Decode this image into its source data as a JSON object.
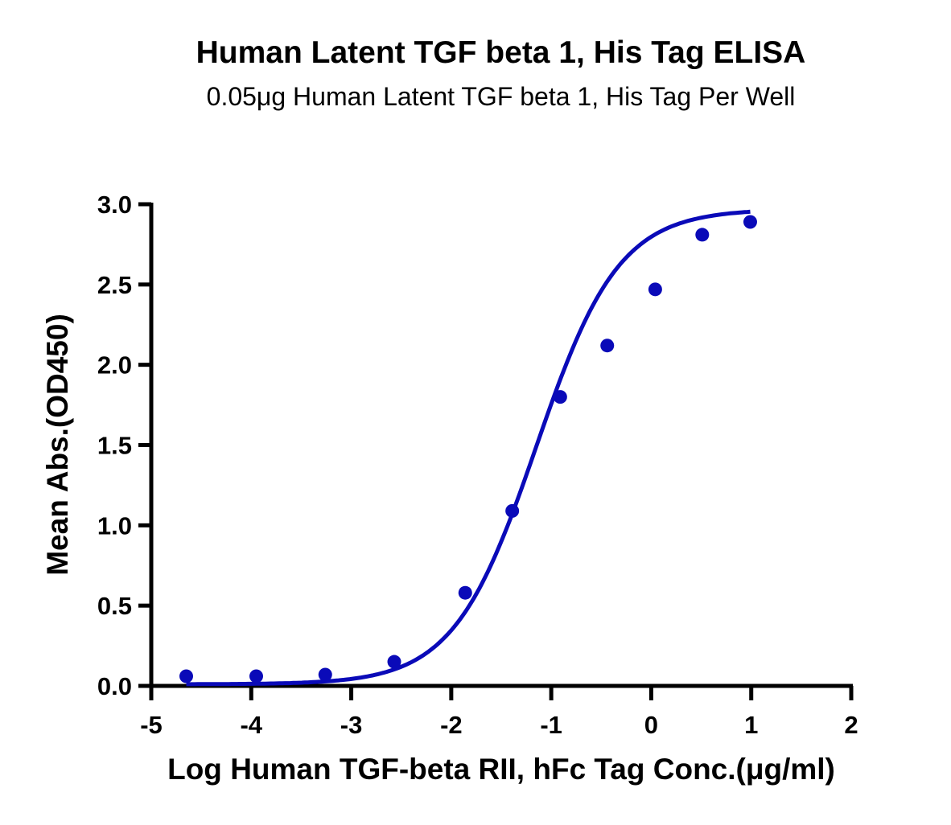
{
  "chart_data": {
    "type": "scatter",
    "title": "Human Latent TGF beta 1, His Tag ELISA",
    "subtitle": "0.05μg Human Latent TGF beta 1, His Tag Per Well",
    "xlabel": "Log Human TGF-beta RII, hFc Tag Conc.(μg/ml)",
    "ylabel": "Mean Abs.(OD450)",
    "xlim": [
      -5,
      2
    ],
    "ylim": [
      0,
      3.0
    ],
    "x_ticks": [
      "-5",
      "-4",
      "-3",
      "-2",
      "-1",
      "0",
      "1",
      "2"
    ],
    "y_ticks": [
      "0.0",
      "0.5",
      "1.0",
      "1.5",
      "2.0",
      "2.5",
      "3.0"
    ],
    "grid": false,
    "legend": null,
    "series": [
      {
        "name": "Mean Abs.",
        "color": "#0A0AB8",
        "marker": "circle",
        "x": [
          -4.65,
          -3.95,
          -3.26,
          -2.57,
          -1.86,
          -1.39,
          -0.91,
          -0.44,
          0.04,
          0.51,
          0.99
        ],
        "y": [
          0.06,
          0.06,
          0.07,
          0.15,
          0.58,
          1.09,
          1.8,
          2.12,
          2.47,
          2.81,
          2.89
        ]
      }
    ],
    "fit_curve": {
      "type": "4PL",
      "color": "#0A0AB8",
      "bottom": 0.01,
      "top": 2.97,
      "log_ec50": -1.15,
      "hill": 1.05,
      "x_range": [
        -4.65,
        0.99
      ]
    }
  }
}
